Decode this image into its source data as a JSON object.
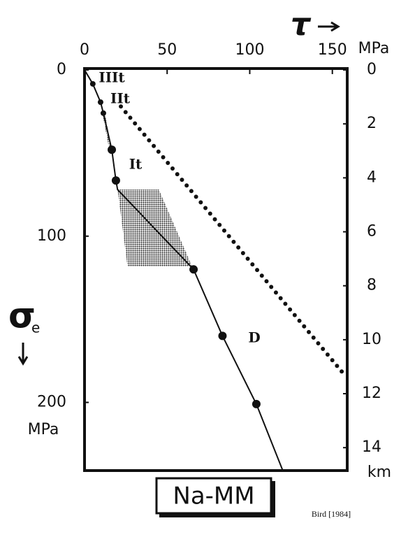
{
  "chart_data": {
    "type": "line",
    "x_label": "τ",
    "x_unit": "MPa",
    "y_label": "σ",
    "y_label_sub": "e",
    "y_unit": "MPa",
    "y2_unit": "km",
    "xlim": [
      0,
      159
    ],
    "xticks": [
      0,
      50,
      100,
      150
    ],
    "ylim": [
      0,
      241
    ],
    "yticks": [
      0,
      100,
      200
    ],
    "invert_y": true,
    "y2lim": [
      0,
      14.85
    ],
    "y2ticks": [
      0,
      2,
      4,
      6,
      8,
      10,
      12,
      14
    ],
    "series": [
      {
        "color": "#111111",
        "style": "solid",
        "x": [
          0,
          5,
          9.7,
          11.4,
          16.5,
          19,
          20,
          66,
          83.5,
          104,
          120
        ],
        "values": [
          0,
          8.4,
          19.4,
          26,
          48,
          66.5,
          72,
          120,
          160,
          201,
          241
        ]
      },
      {
        "color": "#111111",
        "style": "markers",
        "x": [
          5,
          9.7,
          11.4,
          16.5,
          19,
          66,
          83.5,
          104
        ],
        "values": [
          8.4,
          19.4,
          26,
          48,
          66.5,
          120,
          160,
          201
        ]
      },
      {
        "color": "#111111",
        "style": "dotted",
        "x": [
          22,
          157
        ],
        "values": [
          22,
          183
        ]
      }
    ],
    "regions": [
      {
        "color": "#8a8a8a",
        "x": [
          20,
          45,
          65,
          26
        ],
        "values": [
          72,
          72,
          118,
          118
        ]
      },
      {
        "color": "#8a8a8a",
        "x": [
          11,
          12.5,
          16.5,
          15
        ],
        "values": [
          27,
          27,
          48,
          48
        ]
      }
    ],
    "annotations": [
      "IIIt",
      "IIt",
      "It",
      "D"
    ],
    "label": "Na-MM",
    "credit": "Bird [1984]"
  }
}
